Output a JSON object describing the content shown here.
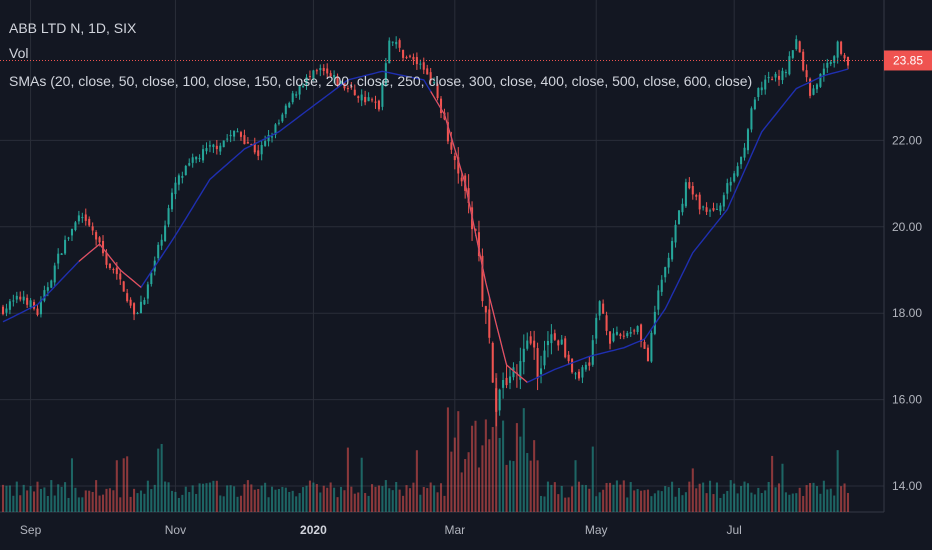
{
  "legend": {
    "title": "ABB LTD N, 1D, SIX",
    "volume": "Vol",
    "sma": "SMAs (20, close, 50, close, 100, close, 150, close, 200, close, 250, close, 300, close, 400, close, 500, close, 600, close)"
  },
  "chart_data": {
    "type": "candlestick",
    "symbol": "ABB LTD N",
    "interval": "1D",
    "exchange": "SIX",
    "y_ticks": [
      "14.00",
      "16.00",
      "18.00",
      "20.00",
      "22.00"
    ],
    "ylim": [
      13.6,
      25.0
    ],
    "last_price": "23.85",
    "x_ticks": [
      {
        "label": "Sep",
        "t": 8,
        "bold": false
      },
      {
        "label": "Nov",
        "t": 50,
        "bold": false
      },
      {
        "label": "2020",
        "t": 90,
        "bold": true
      },
      {
        "label": "Mar",
        "t": 131,
        "bold": false
      },
      {
        "label": "May",
        "t": 172,
        "bold": false
      },
      {
        "label": "Jul",
        "t": 212,
        "bold": false
      }
    ],
    "n_days": 246,
    "close_anchors": [
      [
        0,
        18.1
      ],
      [
        6,
        18.4
      ],
      [
        10,
        18.0
      ],
      [
        17,
        19.5
      ],
      [
        22,
        20.2
      ],
      [
        26,
        19.9
      ],
      [
        30,
        19.2
      ],
      [
        35,
        18.6
      ],
      [
        38,
        17.9
      ],
      [
        42,
        18.6
      ],
      [
        46,
        19.8
      ],
      [
        50,
        21.0
      ],
      [
        56,
        21.6
      ],
      [
        62,
        21.9
      ],
      [
        68,
        22.2
      ],
      [
        74,
        21.7
      ],
      [
        80,
        22.4
      ],
      [
        86,
        23.3
      ],
      [
        92,
        23.6
      ],
      [
        98,
        23.3
      ],
      [
        104,
        23.0
      ],
      [
        109,
        22.8
      ],
      [
        112,
        24.4
      ],
      [
        116,
        24.0
      ],
      [
        120,
        23.8
      ],
      [
        124,
        23.5
      ],
      [
        128,
        22.5
      ],
      [
        133,
        21.2
      ],
      [
        137,
        19.7
      ],
      [
        140,
        18.0
      ],
      [
        143,
        16.0
      ],
      [
        146,
        16.6
      ],
      [
        149,
        16.5
      ],
      [
        152,
        17.5
      ],
      [
        155,
        16.7
      ],
      [
        158,
        17.4
      ],
      [
        162,
        17.3
      ],
      [
        166,
        16.5
      ],
      [
        170,
        16.9
      ],
      [
        173,
        18.3
      ],
      [
        176,
        17.4
      ],
      [
        180,
        17.5
      ],
      [
        184,
        17.7
      ],
      [
        187,
        16.9
      ],
      [
        190,
        18.5
      ],
      [
        194,
        19.6
      ],
      [
        198,
        21.0
      ],
      [
        202,
        20.5
      ],
      [
        206,
        20.3
      ],
      [
        210,
        20.9
      ],
      [
        214,
        21.6
      ],
      [
        218,
        23.0
      ],
      [
        222,
        23.4
      ],
      [
        226,
        23.5
      ],
      [
        230,
        24.3
      ],
      [
        234,
        23.1
      ],
      [
        238,
        23.6
      ],
      [
        242,
        24.2
      ],
      [
        245,
        23.85
      ]
    ],
    "sma20_anchors": [
      [
        0,
        17.8
      ],
      [
        10,
        18.2
      ],
      [
        22,
        19.2
      ],
      [
        28,
        19.6
      ],
      [
        34,
        19.0
      ],
      [
        40,
        18.6
      ],
      [
        50,
        19.8
      ],
      [
        60,
        21.1
      ],
      [
        70,
        21.8
      ],
      [
        80,
        22.2
      ],
      [
        90,
        22.8
      ],
      [
        100,
        23.4
      ],
      [
        110,
        23.6
      ],
      [
        122,
        23.4
      ],
      [
        128,
        22.6
      ],
      [
        134,
        21.0
      ],
      [
        140,
        18.7
      ],
      [
        146,
        16.8
      ],
      [
        152,
        16.4
      ],
      [
        160,
        16.7
      ],
      [
        170,
        17.0
      ],
      [
        180,
        17.2
      ],
      [
        186,
        17.4
      ],
      [
        192,
        18.1
      ],
      [
        200,
        19.4
      ],
      [
        210,
        20.4
      ],
      [
        220,
        22.2
      ],
      [
        230,
        23.2
      ],
      [
        238,
        23.5
      ],
      [
        245,
        23.65
      ]
    ],
    "colors": {
      "up": "#26a69a",
      "down": "#ef5350",
      "sma": "#1f2fb0",
      "sma_tail": "#ef5350",
      "background": "#131722",
      "grid": "#2a2e39"
    }
  }
}
